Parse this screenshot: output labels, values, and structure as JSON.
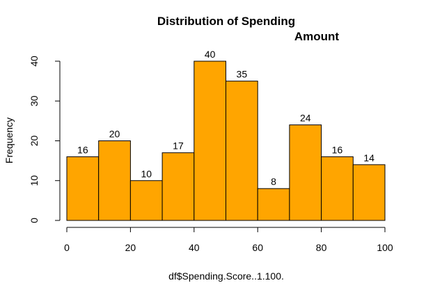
{
  "chart_data": {
    "type": "bar",
    "title_line1": "Distribution of Spending",
    "title_line2": "Amount",
    "xlabel": "df$Spending.Score..1.100.",
    "ylabel": "Frequency",
    "bins": [
      {
        "from": 0,
        "to": 10,
        "count": 16,
        "label": "16"
      },
      {
        "from": 10,
        "to": 20,
        "count": 20,
        "label": "20"
      },
      {
        "from": 20,
        "to": 30,
        "count": 10,
        "label": "10"
      },
      {
        "from": 30,
        "to": 40,
        "count": 17,
        "label": "17"
      },
      {
        "from": 40,
        "to": 50,
        "count": 40,
        "label": "40"
      },
      {
        "from": 50,
        "to": 60,
        "count": 35,
        "label": "35"
      },
      {
        "from": 60,
        "to": 70,
        "count": 8,
        "label": "8"
      },
      {
        "from": 70,
        "to": 80,
        "count": 24,
        "label": "24"
      },
      {
        "from": 80,
        "to": 90,
        "count": 16,
        "label": "16"
      },
      {
        "from": 90,
        "to": 100,
        "count": 14,
        "label": "14"
      }
    ],
    "xlim": [
      0,
      100
    ],
    "ylim": [
      0,
      40
    ],
    "xticks": [
      {
        "value": 0,
        "label": "0"
      },
      {
        "value": 20,
        "label": "20"
      },
      {
        "value": 40,
        "label": "40"
      },
      {
        "value": 60,
        "label": "60"
      },
      {
        "value": 80,
        "label": "80"
      },
      {
        "value": 100,
        "label": "100"
      }
    ],
    "yticks": [
      {
        "value": 0,
        "label": "0"
      },
      {
        "value": 10,
        "label": "10"
      },
      {
        "value": 20,
        "label": "20"
      },
      {
        "value": 30,
        "label": "30"
      },
      {
        "value": 40,
        "label": "40"
      }
    ],
    "bar_color": "#FFA500",
    "bar_border_color": "#000000",
    "grid": false
  }
}
